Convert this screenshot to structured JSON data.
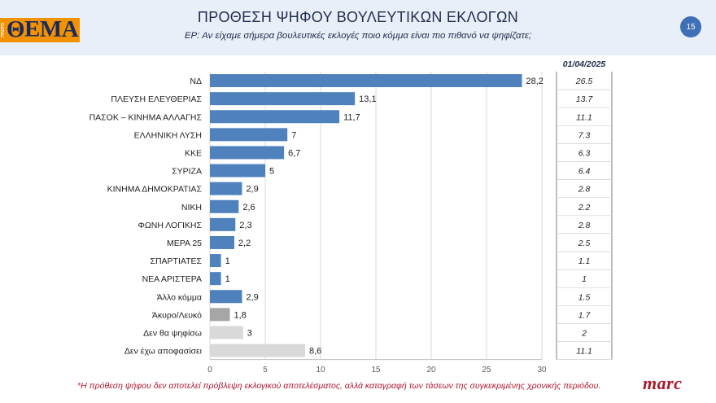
{
  "header": {
    "logo_text": "ΘΕΜΑ",
    "logo_small": "ΠΡΩΤΟ",
    "title": "ΠΡΟΘΕΣΗ ΨΗΦΟΥ ΒΟΥΛΕΥΤΙΚΩΝ ΕΚΛΟΓΩΝ",
    "subtitle": "ΕΡ:  Αν είχαμε σήμερα βουλευτικές εκλογές ποιο κόμμα είναι πιο πιθανό να ψηφίζατε;",
    "page_number": "15"
  },
  "colors": {
    "bar_primary": "#4f81bd",
    "bar_gray": "#a6a6a6",
    "bar_light": "#d9d9d9",
    "header_bg": "#e9eff8",
    "footnote": "#b0172e"
  },
  "chart_data": {
    "type": "bar",
    "orientation": "horizontal",
    "categories": [
      "ΝΔ",
      "ΠΛΕΥΣΗ ΕΛΕΥΘΕΡΙΑΣ",
      "ΠΑΣΟΚ – ΚΙΝΗΜΑ ΑΛΛΑΓΗΣ",
      "ΕΛΛΗΝΙΚΗ ΛΥΣΗ",
      "ΚΚΕ",
      "ΣΥΡΙΖΑ",
      "ΚΙΝΗΜΑ ΔΗΜΟΚΡΑΤΙΑΣ",
      "ΝΙΚΗ",
      "ΦΩΝΗ ΛΟΓΙΚΗΣ",
      "ΜΕΡΑ 25",
      "ΣΠΑΡΤΙΑΤΕΣ",
      "ΝΕΑ ΑΡΙΣΤΕΡΑ",
      "Άλλο κόμμα",
      "Άκυρο/Λευκό",
      "Δεν θα ψηφίσω",
      "Δεν έχω αποφασίσει"
    ],
    "values": [
      28.2,
      13.1,
      11.7,
      7,
      6.7,
      5,
      2.9,
      2.6,
      2.3,
      2.2,
      1,
      1,
      2.9,
      1.8,
      3,
      8.6
    ],
    "value_labels": [
      "28,2",
      "13,1",
      "11,7",
      "7",
      "6,7",
      "5",
      "2,9",
      "2,6",
      "2,3",
      "2,2",
      "1",
      "1",
      "2,9",
      "1,8",
      "3",
      "8,6"
    ],
    "bar_color_keys": [
      "bar_primary",
      "bar_primary",
      "bar_primary",
      "bar_primary",
      "bar_primary",
      "bar_primary",
      "bar_primary",
      "bar_primary",
      "bar_primary",
      "bar_primary",
      "bar_primary",
      "bar_primary",
      "bar_primary",
      "bar_gray",
      "bar_light",
      "bar_light"
    ],
    "xlim": [
      0,
      30
    ],
    "xticks": [
      0,
      5,
      10,
      15,
      20,
      25,
      30
    ],
    "comparison": {
      "header": "01/04/2025",
      "values": [
        "26.5",
        "13.7",
        "11.1",
        "7.3",
        "6.3",
        "6.4",
        "2.8",
        "2.2",
        "2.8",
        "2.5",
        "1.1",
        "1",
        "1.5",
        "1.7",
        "2",
        "11.1"
      ]
    },
    "grid": true
  },
  "footer": {
    "footnote": "*Η πρόθεση ψήφου δεν αποτελεί πρόβλεψη εκλογικού αποτελέσματος, αλλά καταγραφή των τάσεων της συγκεκριμένης χρονικής περιόδου.",
    "brand": "marc"
  }
}
